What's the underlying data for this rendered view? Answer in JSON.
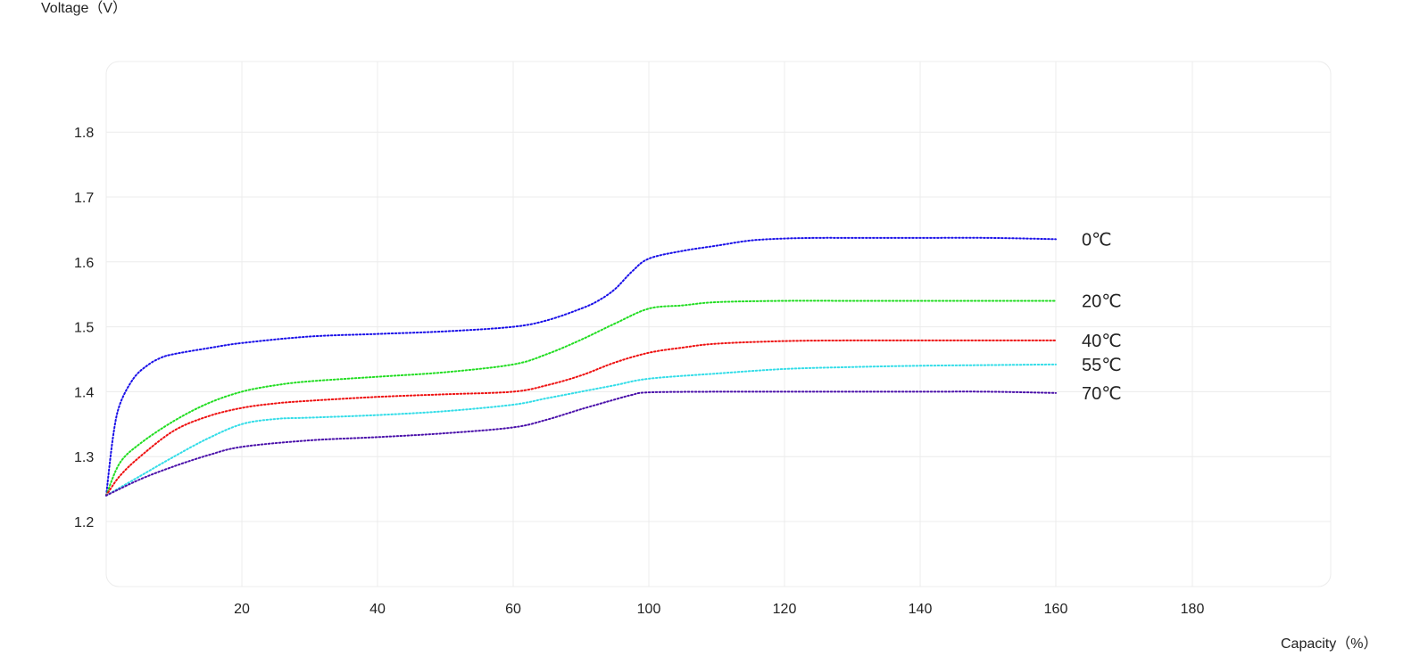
{
  "chart_data": {
    "type": "line",
    "ylabel": "Voltage（V）",
    "xlabel": "Capacity（%）",
    "x_ticks": [
      "20",
      "40",
      "60",
      "100",
      "120",
      "140",
      "160",
      "180"
    ],
    "y_ticks": [
      "1.2",
      "1.3",
      "1.4",
      "1.5",
      "1.6",
      "1.7",
      "1.8"
    ],
    "y_tick_values": [
      1.2,
      1.3,
      1.4,
      1.5,
      1.6,
      1.7,
      1.8
    ],
    "ylim": [
      1.1,
      1.91
    ],
    "grid": true,
    "legend_placement": "inline-right",
    "series": [
      {
        "name": "0℃",
        "color": "#1a10e8",
        "x": [
          0,
          1,
          2,
          4,
          6,
          8,
          10,
          15,
          20,
          30,
          40,
          50,
          60,
          70,
          80,
          85,
          90,
          95,
          100,
          105,
          110,
          115,
          120,
          125,
          130,
          140,
          150,
          160
        ],
        "y": [
          1.24,
          1.33,
          1.38,
          1.42,
          1.44,
          1.452,
          1.458,
          1.467,
          1.475,
          1.485,
          1.489,
          1.493,
          1.5,
          1.51,
          1.528,
          1.54,
          1.558,
          1.585,
          1.605,
          1.617,
          1.625,
          1.633,
          1.636,
          1.637,
          1.637,
          1.637,
          1.637,
          1.635
        ]
      },
      {
        "name": "20℃",
        "color": "#22dd22",
        "x": [
          0,
          2,
          5,
          10,
          15,
          20,
          25,
          30,
          40,
          50,
          60,
          70,
          80,
          90,
          100,
          105,
          110,
          120,
          130,
          140,
          150,
          160
        ],
        "y": [
          1.24,
          1.29,
          1.32,
          1.355,
          1.382,
          1.4,
          1.41,
          1.416,
          1.423,
          1.43,
          1.442,
          1.458,
          1.48,
          1.505,
          1.528,
          1.533,
          1.538,
          1.54,
          1.54,
          1.54,
          1.54,
          1.54
        ]
      },
      {
        "name": "40℃",
        "color": "#ee1111",
        "x": [
          0,
          2,
          5,
          10,
          15,
          20,
          25,
          30,
          40,
          50,
          60,
          70,
          80,
          90,
          100,
          105,
          110,
          120,
          130,
          140,
          150,
          160
        ],
        "y": [
          1.24,
          1.27,
          1.3,
          1.34,
          1.362,
          1.375,
          1.382,
          1.386,
          1.392,
          1.396,
          1.4,
          1.41,
          1.425,
          1.445,
          1.46,
          1.468,
          1.474,
          1.478,
          1.479,
          1.479,
          1.479,
          1.479
        ]
      },
      {
        "name": "55℃",
        "color": "#33dde8",
        "x": [
          0,
          5,
          10,
          15,
          20,
          25,
          30,
          40,
          50,
          60,
          70,
          80,
          90,
          100,
          110,
          120,
          130,
          140,
          150,
          160
        ],
        "y": [
          1.24,
          1.27,
          1.3,
          1.328,
          1.35,
          1.358,
          1.36,
          1.364,
          1.37,
          1.38,
          1.39,
          1.4,
          1.41,
          1.42,
          1.428,
          1.435,
          1.438,
          1.44,
          1.441,
          1.442
        ]
      },
      {
        "name": "70℃",
        "color": "#4a10aa",
        "x": [
          0,
          5,
          10,
          15,
          20,
          30,
          40,
          50,
          60,
          70,
          80,
          90,
          95,
          100,
          110,
          120,
          130,
          140,
          150,
          160
        ],
        "y": [
          1.24,
          1.265,
          1.285,
          1.302,
          1.315,
          1.325,
          1.33,
          1.336,
          1.345,
          1.357,
          1.373,
          1.388,
          1.395,
          1.399,
          1.4,
          1.4,
          1.4,
          1.4,
          1.4,
          1.398
        ]
      }
    ]
  }
}
